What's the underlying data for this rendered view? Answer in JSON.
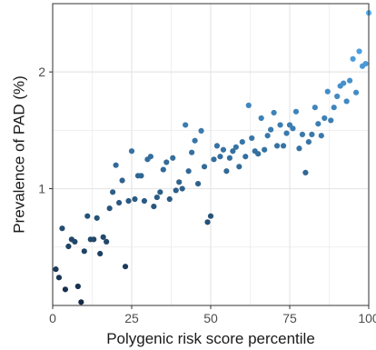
{
  "chart_data": {
    "type": "scatter",
    "title": "",
    "xlabel": "Polygenic risk score percentile",
    "ylabel": "Prevalence of PAD (%)",
    "xlim": [
      0,
      100
    ],
    "ylim": [
      0.5,
      3.0
    ],
    "y_scale": "log",
    "x_ticks": [
      0,
      25,
      50,
      75,
      100
    ],
    "x_tick_labels": [
      "0",
      "25",
      "50",
      "75",
      "100"
    ],
    "y_ticks": [
      1,
      2
    ],
    "y_tick_labels": [
      "1",
      "2"
    ],
    "grid": true,
    "legend": "none",
    "colors": {
      "background": "#ffffff",
      "grid": "#e6e6e6",
      "border": "#333333",
      "point_low": "#132b43",
      "point_high": "#56b1f7"
    },
    "series": [
      {
        "x": [
          1,
          2,
          3,
          4,
          5,
          6,
          7,
          8,
          9,
          10,
          11,
          12,
          13,
          14,
          15,
          16,
          17,
          18,
          19,
          20,
          21,
          22,
          23,
          24,
          25,
          26,
          27,
          28,
          29,
          30,
          31,
          32,
          33,
          34,
          35,
          36,
          37,
          38,
          39,
          40,
          41,
          42,
          43,
          44,
          45,
          46,
          47,
          48,
          49,
          50,
          51,
          52,
          53,
          54,
          55,
          56,
          57,
          58,
          59,
          60,
          61,
          62,
          63,
          64,
          65,
          66,
          67,
          68,
          69,
          70,
          71,
          72,
          73,
          74,
          75,
          76,
          77,
          78,
          79,
          80,
          81,
          82,
          83,
          84,
          85,
          86,
          87,
          88,
          89,
          90,
          91,
          92,
          93,
          94,
          95,
          96,
          97,
          98,
          99,
          100
        ],
        "y": [
          0.62,
          0.59,
          0.79,
          0.55,
          0.71,
          0.74,
          0.73,
          0.56,
          0.51,
          0.69,
          0.85,
          0.74,
          0.74,
          0.84,
          0.68,
          0.75,
          0.73,
          0.89,
          0.98,
          1.15,
          0.92,
          1.05,
          0.63,
          0.93,
          1.25,
          0.94,
          1.08,
          1.08,
          0.93,
          1.19,
          1.21,
          0.9,
          0.95,
          0.98,
          1.12,
          1.17,
          0.94,
          1.2,
          0.99,
          1.04,
          1.0,
          1.46,
          1.11,
          1.24,
          1.33,
          1.03,
          1.41,
          1.14,
          0.82,
          0.85,
          1.19,
          1.29,
          1.21,
          1.26,
          1.11,
          1.2,
          1.25,
          1.28,
          1.14,
          1.32,
          1.21,
          1.64,
          1.35,
          1.25,
          1.23,
          1.52,
          1.26,
          1.37,
          1.42,
          1.57,
          1.29,
          1.46,
          1.29,
          1.39,
          1.46,
          1.43,
          1.58,
          1.27,
          1.38,
          1.1,
          1.32,
          1.38,
          1.62,
          1.47,
          1.37,
          1.52,
          1.78,
          1.5,
          1.62,
          1.73,
          1.84,
          1.87,
          1.68,
          1.9,
          2.16,
          1.77,
          2.26,
          2.07,
          2.1,
          2.84
        ]
      }
    ]
  }
}
